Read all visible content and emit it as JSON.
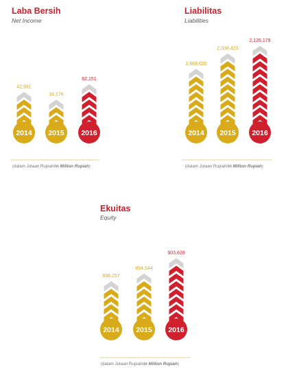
{
  "colors": {
    "title": "#c8202a",
    "gold": "#d9ab1a",
    "red": "#d0202e",
    "grey": "#d3d3d3",
    "gold_text": "#d6a720",
    "red_text": "#c8202a",
    "axis": "#dfc56a"
  },
  "chart_data": [
    {
      "type": "bar",
      "title": "Laba Bersih",
      "subtitle": "Net Income",
      "categories": [
        "2014",
        "2015",
        "2016"
      ],
      "values": [
        42991,
        34176,
        62151
      ],
      "value_labels": [
        "42,991",
        "34,176",
        "62,151"
      ],
      "chevron_counts": [
        4,
        3,
        5
      ],
      "highlight": "2016",
      "note": "(dalam Jutaan Rupiah/",
      "note_italic": "in Million Rupiah",
      "note_end": ")"
    },
    {
      "type": "bar",
      "title": "Liabilitas",
      "subtitle": "Liabilities",
      "categories": [
        "2014",
        "2015",
        "2016"
      ],
      "values": [
        1669020,
        2038423,
        2126179
      ],
      "value_labels": [
        "1,669,020",
        "2,038,423",
        "2,126,179"
      ],
      "chevron_counts": [
        7,
        9,
        10
      ],
      "highlight": "2016",
      "note": "(dalam Jutaan Rupiah/",
      "note_italic": "in Million Rupiah",
      "note_end": ")"
    },
    {
      "type": "bar",
      "title": "Ekuitas",
      "subtitle": "Equity",
      "categories": [
        "2014",
        "2015",
        "2016"
      ],
      "values": [
        838257,
        854544,
        903628
      ],
      "value_labels": [
        "838,257",
        "854,544",
        "903,628"
      ],
      "chevron_counts": [
        5,
        6,
        8
      ],
      "highlight": "2016",
      "note": "(dalam Jutaan Rupiah/",
      "note_italic": "in Million Rupiah",
      "note_end": ")"
    }
  ]
}
